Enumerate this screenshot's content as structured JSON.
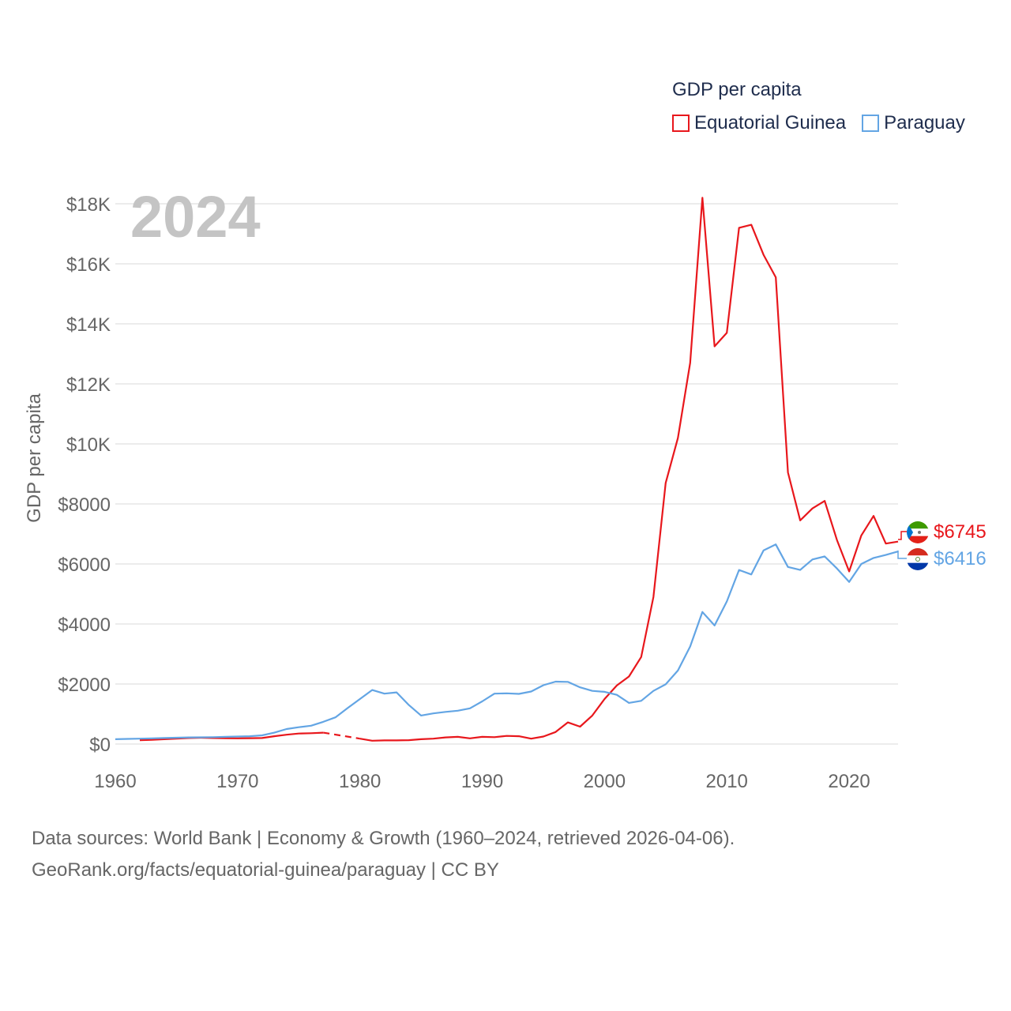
{
  "legend": {
    "title": "GDP per capita",
    "items": [
      {
        "label": "Equatorial Guinea",
        "color": "#e8171c"
      },
      {
        "label": "Paraguay",
        "color": "#63a5e4"
      }
    ]
  },
  "footer": {
    "line1": "Data sources: World Bank | Economy & Growth (1960–2024, retrieved 2026-04-06).",
    "line2": "GeoRank.org/facts/equatorial-guinea/paraguay | CC BY"
  },
  "end_labels": {
    "equatorial_guinea": "$6745",
    "paraguay": "$6416"
  },
  "chart_data": {
    "type": "line",
    "title": "GDP per capita",
    "year_label": "2024",
    "xlabel": "",
    "ylabel": "GDP per capita",
    "xlim": [
      1960,
      2024
    ],
    "ylim": [
      0,
      18000
    ],
    "x_ticks": [
      1960,
      1970,
      1980,
      1990,
      2000,
      2010,
      2020
    ],
    "y_ticks": [
      {
        "value": 0,
        "label": "$0"
      },
      {
        "value": 2000,
        "label": "$2000"
      },
      {
        "value": 4000,
        "label": "$4000"
      },
      {
        "value": 6000,
        "label": "$6000"
      },
      {
        "value": 8000,
        "label": "$8000"
      },
      {
        "value": 10000,
        "label": "$10K"
      },
      {
        "value": 12000,
        "label": "$12K"
      },
      {
        "value": 14000,
        "label": "$14K"
      },
      {
        "value": 16000,
        "label": "$16K"
      },
      {
        "value": 18000,
        "label": "$18K"
      }
    ],
    "series": [
      {
        "name": "Equatorial Guinea",
        "color": "#e8171c",
        "gap": [
          1977,
          1980
        ],
        "points": [
          [
            1962,
            130
          ],
          [
            1963,
            140
          ],
          [
            1964,
            160
          ],
          [
            1965,
            180
          ],
          [
            1966,
            200
          ],
          [
            1967,
            210
          ],
          [
            1968,
            200
          ],
          [
            1969,
            195
          ],
          [
            1970,
            190
          ],
          [
            1971,
            195
          ],
          [
            1972,
            200
          ],
          [
            1973,
            260
          ],
          [
            1974,
            310
          ],
          [
            1975,
            350
          ],
          [
            1976,
            360
          ],
          [
            1977,
            380
          ],
          [
            1980,
            180
          ],
          [
            1981,
            110
          ],
          [
            1982,
            120
          ],
          [
            1983,
            120
          ],
          [
            1984,
            130
          ],
          [
            1985,
            160
          ],
          [
            1986,
            180
          ],
          [
            1987,
            220
          ],
          [
            1988,
            240
          ],
          [
            1989,
            190
          ],
          [
            1990,
            240
          ],
          [
            1991,
            230
          ],
          [
            1992,
            270
          ],
          [
            1993,
            260
          ],
          [
            1994,
            180
          ],
          [
            1995,
            250
          ],
          [
            1996,
            400
          ],
          [
            1997,
            720
          ],
          [
            1998,
            580
          ],
          [
            1999,
            950
          ],
          [
            2000,
            1500
          ],
          [
            2001,
            1950
          ],
          [
            2002,
            2250
          ],
          [
            2003,
            2900
          ],
          [
            2004,
            4900
          ],
          [
            2005,
            8700
          ],
          [
            2006,
            10200
          ],
          [
            2007,
            12700
          ],
          [
            2008,
            18200
          ],
          [
            2009,
            13250
          ],
          [
            2010,
            13700
          ],
          [
            2011,
            17200
          ],
          [
            2012,
            17300
          ],
          [
            2013,
            16300
          ],
          [
            2014,
            15550
          ],
          [
            2015,
            9050
          ],
          [
            2016,
            7450
          ],
          [
            2017,
            7850
          ],
          [
            2018,
            8100
          ],
          [
            2019,
            6800
          ],
          [
            2020,
            5750
          ],
          [
            2021,
            6950
          ],
          [
            2022,
            7600
          ],
          [
            2023,
            6680
          ],
          [
            2024,
            6745
          ]
        ]
      },
      {
        "name": "Paraguay",
        "color": "#63a5e4",
        "points": [
          [
            1960,
            160
          ],
          [
            1961,
            170
          ],
          [
            1962,
            180
          ],
          [
            1963,
            190
          ],
          [
            1964,
            200
          ],
          [
            1965,
            210
          ],
          [
            1966,
            220
          ],
          [
            1967,
            225
          ],
          [
            1968,
            230
          ],
          [
            1969,
            240
          ],
          [
            1970,
            250
          ],
          [
            1971,
            260
          ],
          [
            1972,
            290
          ],
          [
            1973,
            380
          ],
          [
            1974,
            500
          ],
          [
            1975,
            560
          ],
          [
            1976,
            610
          ],
          [
            1977,
            740
          ],
          [
            1978,
            890
          ],
          [
            1979,
            1200
          ],
          [
            1980,
            1500
          ],
          [
            1981,
            1800
          ],
          [
            1982,
            1680
          ],
          [
            1983,
            1720
          ],
          [
            1984,
            1300
          ],
          [
            1985,
            950
          ],
          [
            1986,
            1020
          ],
          [
            1987,
            1070
          ],
          [
            1988,
            1110
          ],
          [
            1989,
            1190
          ],
          [
            1990,
            1420
          ],
          [
            1991,
            1680
          ],
          [
            1992,
            1690
          ],
          [
            1993,
            1670
          ],
          [
            1994,
            1750
          ],
          [
            1995,
            1960
          ],
          [
            1996,
            2080
          ],
          [
            1997,
            2070
          ],
          [
            1998,
            1890
          ],
          [
            1999,
            1770
          ],
          [
            2000,
            1740
          ],
          [
            2001,
            1640
          ],
          [
            2002,
            1370
          ],
          [
            2003,
            1440
          ],
          [
            2004,
            1770
          ],
          [
            2005,
            1990
          ],
          [
            2006,
            2450
          ],
          [
            2007,
            3250
          ],
          [
            2008,
            4400
          ],
          [
            2009,
            3950
          ],
          [
            2010,
            4750
          ],
          [
            2011,
            5800
          ],
          [
            2012,
            5650
          ],
          [
            2013,
            6450
          ],
          [
            2014,
            6650
          ],
          [
            2015,
            5900
          ],
          [
            2016,
            5800
          ],
          [
            2017,
            6150
          ],
          [
            2018,
            6250
          ],
          [
            2019,
            5850
          ],
          [
            2020,
            5400
          ],
          [
            2021,
            6000
          ],
          [
            2022,
            6200
          ],
          [
            2023,
            6300
          ],
          [
            2024,
            6416
          ]
        ]
      }
    ]
  }
}
